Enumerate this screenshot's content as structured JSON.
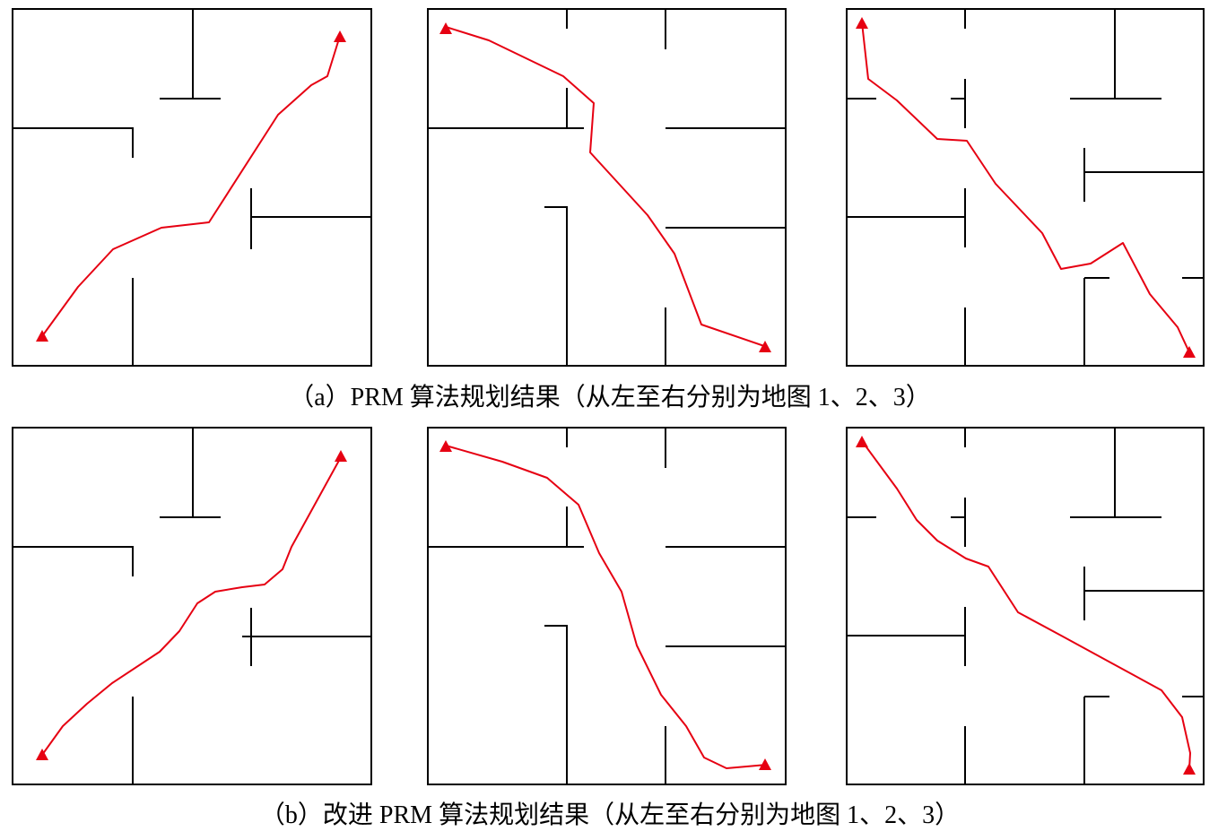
{
  "captions": {
    "a": "（a）PRM 算法规划结果（从左至右分别为地图 1、2、3）",
    "b": "（b）改进 PRM 算法规划结果（从左至右分别为地图 1、2、3）"
  }
}
